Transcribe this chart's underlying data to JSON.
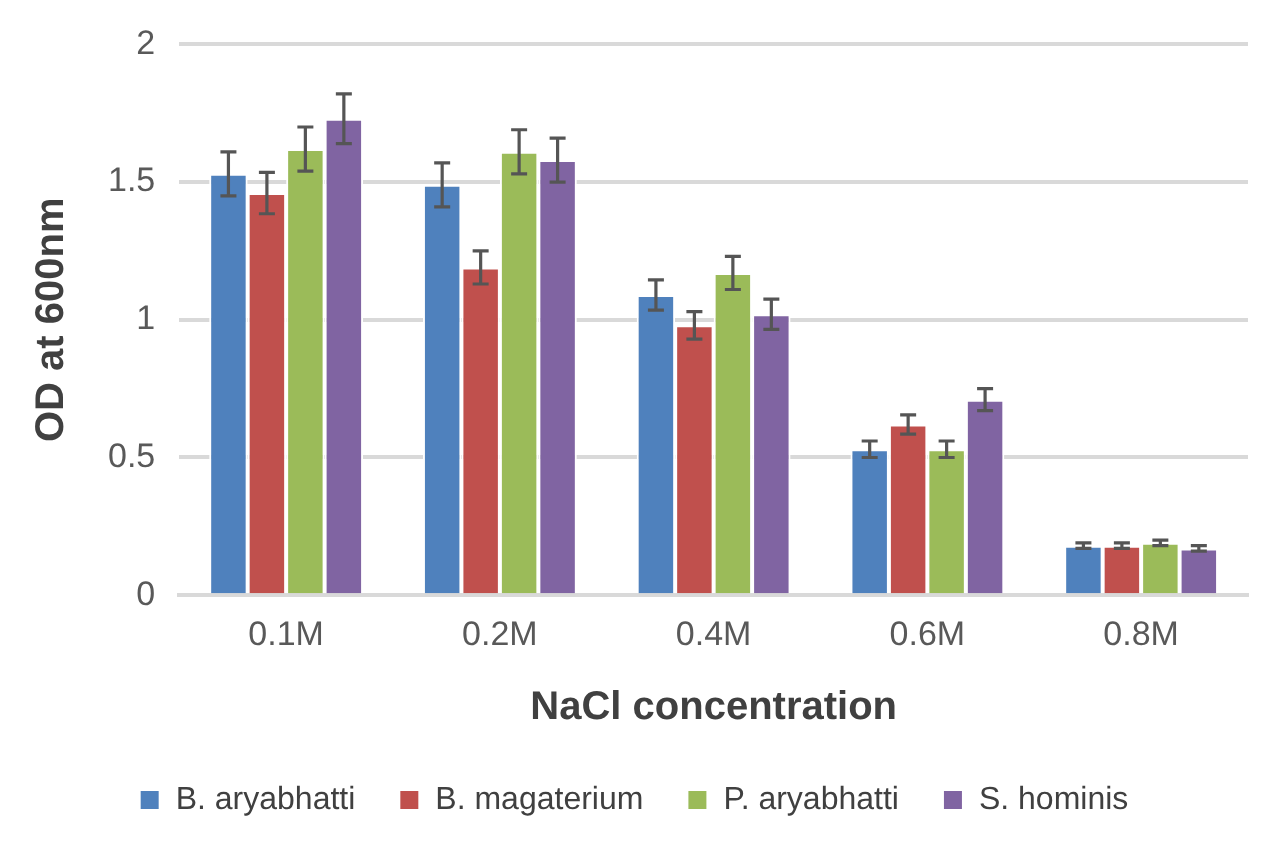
{
  "chart_data": {
    "type": "bar",
    "xlabel": "NaCl concentration",
    "ylabel": "OD at 600nm",
    "categories": [
      "0.1M",
      "0.2M",
      "0.4M",
      "0.6M",
      "0.8M"
    ],
    "series": [
      {
        "name": "B. aryabhatti",
        "color": "#4f81bd",
        "values": [
          1.53,
          1.49,
          1.09,
          0.53,
          0.18
        ],
        "errors": [
          0.08,
          0.08,
          0.055,
          0.03,
          0.01
        ]
      },
      {
        "name": "B. magaterium",
        "color": "#c0504d",
        "values": [
          1.46,
          1.19,
          0.98,
          0.62,
          0.18
        ],
        "errors": [
          0.075,
          0.06,
          0.05,
          0.035,
          0.01
        ]
      },
      {
        "name": "P. aryabhatti",
        "color": "#9bbb59",
        "values": [
          1.62,
          1.61,
          1.17,
          0.53,
          0.19
        ],
        "errors": [
          0.08,
          0.08,
          0.06,
          0.03,
          0.01
        ]
      },
      {
        "name": "S. hominis",
        "color": "#8064a2",
        "values": [
          1.73,
          1.58,
          1.02,
          0.71,
          0.17
        ],
        "errors": [
          0.09,
          0.08,
          0.055,
          0.04,
          0.01
        ]
      }
    ],
    "ylim": [
      0,
      2
    ],
    "yticks": [
      0,
      0.5,
      1,
      1.5,
      2
    ],
    "grid": "y",
    "legend": "bottom"
  }
}
